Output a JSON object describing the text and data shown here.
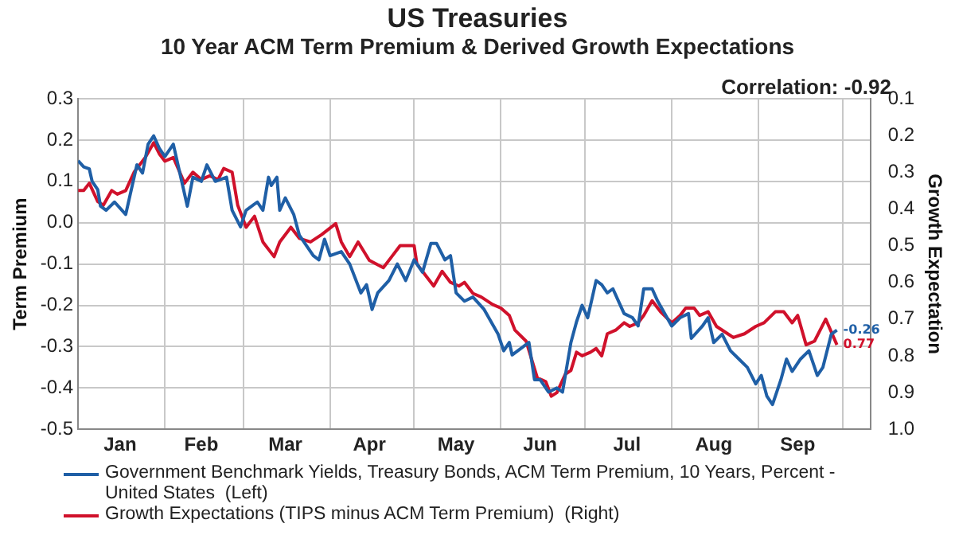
{
  "chart_data": {
    "type": "line",
    "title": "US Treasuries",
    "subtitle": "10 Year ACM Term Premium & Derived Growth Expectations",
    "ylabel": "Term Premium",
    "y2label": "Growth Expectation",
    "annotations": [
      "Correlation: -0.92"
    ],
    "xlim": [
      "--01-01",
      "--10-11"
    ],
    "xticks": [
      {
        "value": "--01-16",
        "label": "Jan"
      },
      {
        "value": "--02-01",
        "label": null
      },
      {
        "value": "--02-14",
        "label": "Feb"
      },
      {
        "value": "--03-01",
        "label": null
      },
      {
        "value": "--03-16",
        "label": "Mar"
      },
      {
        "value": "--04-01",
        "label": null
      },
      {
        "value": "--04-15",
        "label": "Apr"
      },
      {
        "value": "--05-01",
        "label": null
      },
      {
        "value": "--05-16",
        "label": "May"
      },
      {
        "value": "--06-01",
        "label": null
      },
      {
        "value": "--06-15",
        "label": "Jun"
      },
      {
        "value": "--07-01",
        "label": null
      },
      {
        "value": "--07-16",
        "label": "Jul"
      },
      {
        "value": "--08-01",
        "label": null
      },
      {
        "value": "--08-16",
        "label": "Aug"
      },
      {
        "value": "--09-01",
        "label": null
      },
      {
        "value": "--09-15",
        "label": "Sep"
      },
      {
        "value": "--10-01",
        "label": null
      }
    ],
    "ylim": [
      -0.5,
      0.3
    ],
    "yticks": [
      -0.5,
      -0.4,
      -0.3,
      -0.2,
      -0.1,
      {
        "value": 0,
        "label": "0.0"
      },
      0.1,
      0.2,
      0.3
    ],
    "y2lim": [
      1.0,
      0.1
    ],
    "y2ticks": [
      {
        "value": 1,
        "label": "1.0"
      },
      0.9,
      0.8,
      0.7,
      0.6,
      0.5,
      0.4,
      0.3,
      0.2,
      0.1
    ],
    "grid": true,
    "legend": "bottom",
    "marker": "none",
    "line_style": "solid",
    "series": [
      {
        "name": "Government Benchmark Yields, Treasury Bonds, ACM Term Premium, 10 Years, Percent - United States  (Left)",
        "color": "#1f5fa6",
        "x": [
          "--01-01",
          "--01-03",
          "--01-05",
          "--01-06",
          "--01-08",
          "--01-09",
          "--01-11",
          "--01-14",
          "--01-18",
          "--01-22",
          "--01-24",
          "--01-26",
          "--01-28",
          "--01-30",
          "--02-01",
          "--02-04",
          "--02-06",
          "--02-09",
          "--02-11",
          "--02-14",
          "--02-16",
          "--02-19",
          "--02-23",
          "--02-25",
          "--02-28",
          "--03-02",
          "--03-06",
          "--03-08",
          "--03-10",
          "--03-11",
          "--03-13",
          "--03-14",
          "--03-16",
          "--03-19",
          "--03-21",
          "--03-26",
          "--03-28",
          "--03-30",
          "--04-01",
          "--04-05",
          "--04-08",
          "--04-12",
          "--04-14",
          "--04-16",
          "--04-18",
          "--04-22",
          "--04-25",
          "--04-28",
          "--05-01",
          "--05-04",
          "--05-07",
          "--05-09",
          "--05-12",
          "--05-14",
          "--05-16",
          "--05-19",
          "--05-22",
          "--05-26",
          "--05-31",
          "--06-02",
          "--06-04",
          "--06-05",
          "--06-09",
          "--06-11",
          "--06-13",
          "--06-15",
          "--06-18",
          "--06-21",
          "--06-23",
          "--06-26",
          "--06-28",
          "--06-30",
          "--07-02",
          "--07-05",
          "--07-07",
          "--07-09",
          "--07-11",
          "--07-13",
          "--07-15",
          "--07-18",
          "--07-20",
          "--07-22",
          "--07-25",
          "--07-27",
          "--08-01",
          "--08-04",
          "--08-07",
          "--08-08",
          "--08-12",
          "--08-14",
          "--08-16",
          "--08-19",
          "--08-22",
          "--08-25",
          "--08-28",
          "--08-31",
          "--09-02",
          "--09-04",
          "--09-06",
          "--09-09",
          "--09-11",
          "--09-13",
          "--09-16",
          "--09-19",
          "--09-22",
          "--09-24",
          "--09-27",
          "--09-29"
        ],
        "values": [
          0.15,
          0.135,
          0.13,
          0.1,
          0.08,
          0.04,
          0.03,
          0.05,
          0.02,
          0.14,
          0.12,
          0.19,
          0.21,
          0.18,
          0.16,
          0.19,
          0.13,
          0.04,
          0.11,
          0.1,
          0.14,
          0.1,
          0.11,
          0.03,
          -0.01,
          0.03,
          0.05,
          0.03,
          0.11,
          0.09,
          0.11,
          0.03,
          0.06,
          0.02,
          -0.03,
          -0.08,
          -0.09,
          -0.04,
          -0.08,
          -0.07,
          -0.1,
          -0.17,
          -0.15,
          -0.21,
          -0.17,
          -0.14,
          -0.1,
          -0.14,
          -0.09,
          -0.12,
          -0.05,
          -0.05,
          -0.09,
          -0.08,
          -0.17,
          -0.19,
          -0.18,
          -0.21,
          -0.27,
          -0.31,
          -0.29,
          -0.32,
          -0.3,
          -0.29,
          -0.38,
          -0.38,
          -0.41,
          -0.4,
          -0.41,
          -0.29,
          -0.24,
          -0.2,
          -0.23,
          -0.14,
          -0.15,
          -0.17,
          -0.16,
          -0.19,
          -0.22,
          -0.23,
          -0.25,
          -0.16,
          -0.16,
          -0.19,
          -0.25,
          -0.23,
          -0.22,
          -0.28,
          -0.25,
          -0.23,
          -0.29,
          -0.27,
          -0.31,
          -0.33,
          -0.35,
          -0.39,
          -0.37,
          -0.42,
          -0.44,
          -0.38,
          -0.33,
          -0.36,
          -0.33,
          -0.31,
          -0.37,
          -0.35,
          -0.27,
          -0.26
        ],
        "value_labels": [
          null,
          null,
          null,
          null,
          null,
          null,
          null,
          null,
          null,
          null,
          null,
          null,
          null,
          null,
          null,
          null,
          null,
          null,
          null,
          null,
          null,
          null,
          null,
          null,
          null,
          null,
          null,
          null,
          null,
          null,
          null,
          null,
          null,
          null,
          null,
          null,
          null,
          null,
          null,
          null,
          null,
          null,
          null,
          null,
          null,
          null,
          null,
          null,
          null,
          null,
          null,
          null,
          null,
          null,
          null,
          null,
          null,
          null,
          null,
          null,
          null,
          null,
          null,
          null,
          null,
          null,
          null,
          null,
          null,
          null,
          null,
          null,
          null,
          null,
          null,
          null,
          null,
          null,
          null,
          null,
          null,
          null,
          null,
          null,
          null,
          null,
          null,
          null,
          null,
          null,
          null,
          null,
          null,
          null,
          null,
          null,
          null,
          null,
          null,
          null,
          null,
          null,
          null,
          null,
          null,
          null,
          null,
          "-0.26"
        ]
      },
      {
        "name": "Growth Expectations (TIPS minus ACM Term Premium)  (Right)",
        "color": "#d0112b",
        "axis": "y2",
        "x": [
          "--01-01",
          "--01-03",
          "--01-05",
          "--01-08",
          "--01-10",
          "--01-13",
          "--01-15",
          "--01-18",
          "--01-21",
          "--01-25",
          "--01-28",
          "--01-30",
          "--02-01",
          "--02-04",
          "--02-08",
          "--02-11",
          "--02-14",
          "--02-17",
          "--02-20",
          "--02-22",
          "--02-25",
          "--02-27",
          "--03-02",
          "--03-05",
          "--03-08",
          "--03-12",
          "--03-14",
          "--03-18",
          "--03-21",
          "--03-25",
          "--03-29",
          "--04-03",
          "--04-05",
          "--04-08",
          "--04-11",
          "--04-15",
          "--04-20",
          "--04-23",
          "--04-26",
          "--05-01",
          "--05-02",
          "--05-05",
          "--05-08",
          "--05-11",
          "--05-14",
          "--05-17",
          "--05-19",
          "--05-22",
          "--05-25",
          "--05-29",
          "--06-01",
          "--06-04",
          "--06-06",
          "--06-10",
          "--06-12",
          "--06-14",
          "--06-17",
          "--06-19",
          "--06-21",
          "--06-24",
          "--06-26",
          "--06-28",
          "--06-30",
          "--07-03",
          "--07-05",
          "--07-07",
          "--07-09",
          "--07-12",
          "--07-15",
          "--07-17",
          "--07-20",
          "--07-22",
          "--07-25",
          "--07-28",
          "--08-01",
          "--08-04",
          "--08-06",
          "--08-09",
          "--08-11",
          "--08-14",
          "--08-17",
          "--08-21",
          "--08-23",
          "--08-27",
          "--08-31",
          "--09-03",
          "--09-07",
          "--09-10",
          "--09-13",
          "--09-15",
          "--09-18",
          "--09-21",
          "--09-25",
          "--09-29"
        ],
        "values": [
          0.35,
          0.35,
          0.33,
          0.38,
          0.39,
          0.35,
          0.36,
          0.35,
          0.3,
          0.26,
          0.22,
          0.25,
          0.27,
          0.26,
          0.33,
          0.3,
          0.32,
          0.31,
          0.32,
          0.29,
          0.3,
          0.39,
          0.45,
          0.42,
          0.49,
          0.53,
          0.49,
          0.45,
          0.48,
          0.49,
          0.47,
          0.44,
          0.49,
          0.53,
          0.49,
          0.54,
          0.56,
          0.53,
          0.5,
          0.5,
          0.55,
          0.58,
          0.61,
          0.57,
          0.6,
          0.61,
          0.6,
          0.63,
          0.64,
          0.66,
          0.67,
          0.69,
          0.73,
          0.76,
          0.81,
          0.86,
          0.87,
          0.91,
          0.9,
          0.85,
          0.84,
          0.79,
          0.8,
          0.79,
          0.78,
          0.8,
          0.74,
          0.73,
          0.71,
          0.72,
          0.71,
          0.69,
          0.65,
          0.68,
          0.71,
          0.69,
          0.67,
          0.67,
          0.69,
          0.68,
          0.72,
          0.74,
          0.75,
          0.74,
          0.72,
          0.71,
          0.68,
          0.68,
          0.71,
          0.69,
          0.77,
          0.76,
          0.7,
          0.77
        ],
        "value_labels": [
          null,
          null,
          null,
          null,
          null,
          null,
          null,
          null,
          null,
          null,
          null,
          null,
          null,
          null,
          null,
          null,
          null,
          null,
          null,
          null,
          null,
          null,
          null,
          null,
          null,
          null,
          null,
          null,
          null,
          null,
          null,
          null,
          null,
          null,
          null,
          null,
          null,
          null,
          null,
          null,
          null,
          null,
          null,
          null,
          null,
          null,
          null,
          null,
          null,
          null,
          null,
          null,
          null,
          null,
          null,
          null,
          null,
          null,
          null,
          null,
          null,
          null,
          null,
          null,
          null,
          null,
          null,
          null,
          null,
          null,
          null,
          null,
          null,
          null,
          null,
          null,
          null,
          null,
          null,
          null,
          null,
          null,
          null,
          null,
          null,
          null,
          null,
          null,
          null,
          null,
          null,
          null,
          null,
          "0.77"
        ]
      }
    ]
  }
}
